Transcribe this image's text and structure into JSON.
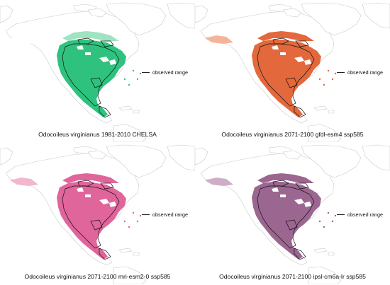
{
  "panels": [
    {
      "id": "p1",
      "caption": "Odocoileus virginianus 1981-2010 CHELSA",
      "color": "#2ec27e",
      "light": "#9fe3c2"
    },
    {
      "id": "p2",
      "caption": "Odocoileus virginianus 2071-2100 gfdl-esm4 ssp585",
      "color": "#e3683c",
      "light": "#f3b49a"
    },
    {
      "id": "p3",
      "caption": "Odocoileus virginianus 2071-2100 mri-esm2-0 ssp585",
      "color": "#e0659a",
      "light": "#f2b7cf"
    },
    {
      "id": "p4",
      "caption": "Odocoileus virginianus 2071-2100 ipsl-cm6a-lr ssp585",
      "color": "#9b6690",
      "light": "#cdaec6"
    }
  ],
  "legend": {
    "label": "observed range"
  }
}
